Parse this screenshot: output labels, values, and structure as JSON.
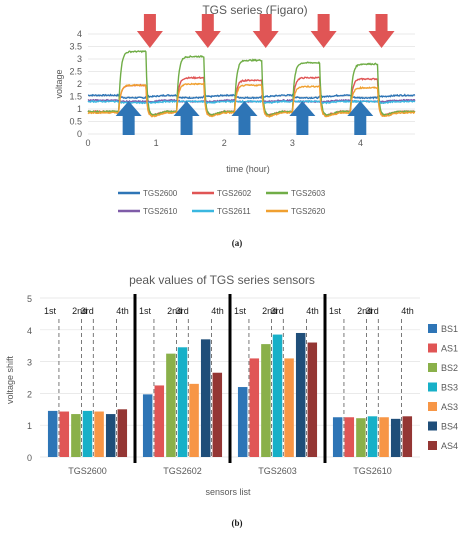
{
  "chart_data": [
    {
      "panel_label": "(a)",
      "type": "line",
      "title": "TGS series (Figaro)",
      "xlabel": "time (hour)",
      "ylabel": "voltage",
      "xlim": [
        0,
        4.8
      ],
      "ylim": [
        0,
        4
      ],
      "x_ticks": [
        "0",
        "1",
        "2",
        "3",
        "4"
      ],
      "y_ticks": [
        "0",
        "0.5",
        "1",
        "1.5",
        "2",
        "2.5",
        "3",
        "3.5",
        "4"
      ],
      "exposure_cycles": [
        {
          "on": 0.45,
          "off": 0.85
        },
        {
          "on": 1.3,
          "off": 1.7
        },
        {
          "on": 2.15,
          "off": 2.55
        },
        {
          "on": 3.0,
          "off": 3.4
        },
        {
          "on": 3.85,
          "off": 4.25
        }
      ],
      "series": [
        {
          "name": "TGS2600",
          "color": "#2e75b6",
          "baseline": 1.55,
          "peaks": [
            1.45,
            1.45,
            1.45,
            1.45,
            1.45
          ]
        },
        {
          "name": "TGS2602",
          "color": "#e05555",
          "baseline": 0.9,
          "peaks": [
            1.95,
            2.25,
            2.15,
            2.25,
            2.2
          ]
        },
        {
          "name": "TGS2603",
          "color": "#70ad47",
          "baseline": 0.9,
          "peaks": [
            3.3,
            3.1,
            2.95,
            2.85,
            2.8
          ]
        },
        {
          "name": "TGS2610",
          "color": "#7f5ca8",
          "baseline": 1.35,
          "peaks": [
            1.3,
            1.3,
            1.3,
            1.3,
            1.3
          ]
        },
        {
          "name": "TGS2611",
          "color": "#3ab7e0",
          "baseline": 1.3,
          "peaks": [
            1.25,
            1.3,
            1.3,
            1.3,
            1.3
          ]
        },
        {
          "name": "TGS2620",
          "color": "#f0a030",
          "baseline": 0.85,
          "peaks": [
            1.95,
            2.0,
            1.95,
            1.9,
            1.85
          ]
        }
      ]
    },
    {
      "panel_label": "(b)",
      "type": "bar",
      "title": "peak values of TGS series sensors",
      "xlabel": "sensors list",
      "ylabel": "voltage shift",
      "ylim": [
        0,
        5
      ],
      "y_ticks": [
        "0",
        "1",
        "2",
        "3",
        "4",
        "5"
      ],
      "categories": [
        "TGS2600",
        "TGS2602",
        "TGS2603",
        "TGS2610"
      ],
      "period_labels": [
        "1st",
        "2nd",
        "3rd",
        "4th"
      ],
      "series": [
        {
          "name": "BS1",
          "color": "#2e75b6",
          "values": [
            1.45,
            1.97,
            2.2,
            1.25
          ]
        },
        {
          "name": "AS1",
          "color": "#e05555",
          "values": [
            1.43,
            2.25,
            3.1,
            1.25
          ]
        },
        {
          "name": "BS2",
          "color": "#8ab04a",
          "values": [
            1.35,
            3.25,
            3.55,
            1.22
          ]
        },
        {
          "name": "BS3",
          "color": "#17b0c8",
          "values": [
            1.45,
            3.45,
            3.85,
            1.28
          ]
        },
        {
          "name": "AS3",
          "color": "#f79646",
          "values": [
            1.43,
            2.3,
            3.1,
            1.25
          ]
        },
        {
          "name": "BS4",
          "color": "#1f4e79",
          "values": [
            1.35,
            3.7,
            3.9,
            1.2
          ]
        },
        {
          "name": "AS4",
          "color": "#943634",
          "values": [
            1.5,
            2.65,
            3.6,
            1.28
          ]
        }
      ]
    }
  ]
}
